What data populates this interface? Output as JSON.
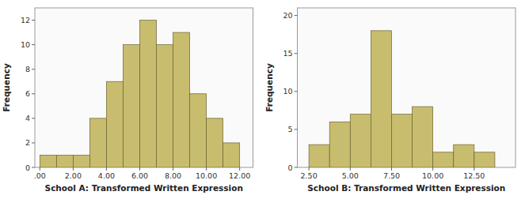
{
  "chart_data": [
    {
      "type": "histogram",
      "bins": [
        0.0,
        1.0,
        2.0,
        3.0,
        4.0,
        5.0,
        6.0,
        7.0,
        8.0,
        9.0,
        10.0,
        11.0,
        12.0
      ],
      "values": [
        1,
        1,
        1,
        4,
        7,
        10,
        12,
        10,
        11,
        6,
        4,
        2
      ],
      "color": "#c8bc6e",
      "xlim": [
        -0.3,
        12.8
      ],
      "ylim": [
        0,
        13
      ],
      "xticks": [
        {
          "value": 0.0,
          "label": ".00"
        },
        {
          "value": 2.0,
          "label": "2.00"
        },
        {
          "value": 4.0,
          "label": "4.00"
        },
        {
          "value": 6.0,
          "label": "6.00"
        },
        {
          "value": 8.0,
          "label": "8.00"
        },
        {
          "value": 10.0,
          "label": "10.00"
        },
        {
          "value": 12.0,
          "label": "12.00"
        }
      ],
      "yticks": [
        0,
        2,
        4,
        6,
        8,
        10,
        12
      ],
      "xlabel": "School A:  Transformed Written Expression",
      "ylabel": "Frequency"
    },
    {
      "type": "histogram",
      "bins": [
        2.5,
        3.75,
        5.0,
        6.25,
        7.5,
        8.75,
        10.0,
        11.25,
        12.5,
        13.75
      ],
      "values": [
        3,
        6,
        7,
        18,
        7,
        8,
        2,
        3,
        2
      ],
      "color": "#c8bc6e",
      "xlim": [
        1.8,
        15.0
      ],
      "ylim": [
        0,
        21
      ],
      "xticks": [
        {
          "value": 2.5,
          "label": "2.50"
        },
        {
          "value": 5.0,
          "label": "5.00"
        },
        {
          "value": 7.5,
          "label": "7.50"
        },
        {
          "value": 10.0,
          "label": "10.00"
        },
        {
          "value": 12.5,
          "label": "12.50"
        }
      ],
      "yticks": [
        0,
        5,
        10,
        15,
        20
      ],
      "xlabel": "School B:  Transformed Written Expression",
      "ylabel": "Frequency"
    }
  ]
}
